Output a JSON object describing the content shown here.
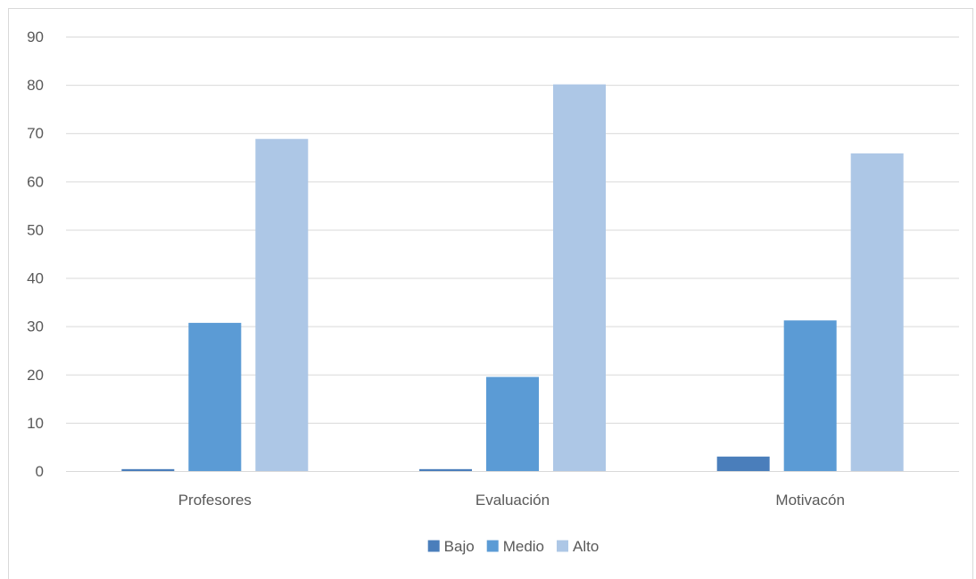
{
  "chart_data": {
    "type": "bar",
    "title": "",
    "xlabel": "",
    "ylabel": "",
    "categories": [
      "Profesores",
      "Evaluación",
      "Motivacón"
    ],
    "series": [
      {
        "name": "Bajo",
        "values": [
          0.4,
          0.4,
          3.0
        ],
        "color": "#4a7ebb"
      },
      {
        "name": "Medio",
        "values": [
          30.7,
          19.5,
          31.2
        ],
        "color": "#5b9bd5"
      },
      {
        "name": "Alto",
        "values": [
          68.8,
          80.1,
          65.8
        ],
        "color": "#adc7e6"
      }
    ],
    "ylim": [
      0,
      90
    ],
    "yticks": [
      0,
      10,
      20,
      30,
      40,
      50,
      60,
      70,
      80,
      90
    ],
    "grid": true,
    "legend_position": "bottom",
    "gridline_color": "#d9d9d9",
    "text_color": "#595959"
  }
}
